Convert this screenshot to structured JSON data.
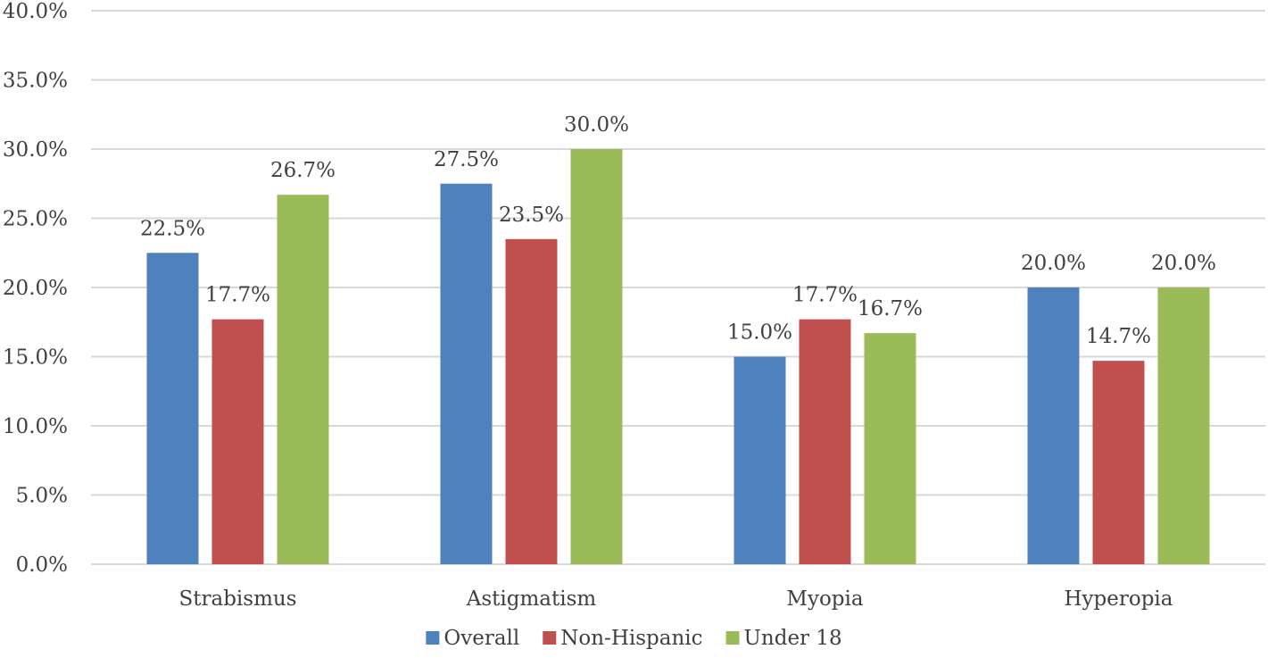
{
  "chart_data": {
    "type": "bar",
    "title": "",
    "xlabel": "",
    "ylabel": "",
    "categories": [
      "Strabismus",
      "Astigmatism",
      "Myopia",
      "Hyperopia"
    ],
    "series": [
      {
        "name": "Overall",
        "color": "#4F81BD",
        "values": [
          22.5,
          27.5,
          15.0,
          20.0
        ],
        "labels": [
          "22.5%",
          "27.5%",
          "15.0%",
          "20.0%"
        ]
      },
      {
        "name": "Non-Hispanic",
        "color": "#C0504D",
        "values": [
          17.7,
          23.5,
          17.7,
          14.7
        ],
        "labels": [
          "17.7%",
          "23.5%",
          "17.7%",
          "14.7%"
        ]
      },
      {
        "name": "Under 18",
        "color": "#9BBB59",
        "values": [
          26.7,
          30.0,
          16.7,
          20.0
        ],
        "labels": [
          "26.7%",
          "30.0%",
          "16.7%",
          "20.0%"
        ]
      }
    ],
    "ylim": [
      0,
      40
    ],
    "yticks": [
      0,
      5,
      10,
      15,
      20,
      25,
      30,
      35,
      40
    ],
    "ytick_labels": [
      "0.0%",
      "5.0%",
      "10.0%",
      "15.0%",
      "20.0%",
      "25.0%",
      "30.0%",
      "35.0%",
      "40.0%"
    ],
    "grid": true,
    "legend_position": "bottom"
  }
}
